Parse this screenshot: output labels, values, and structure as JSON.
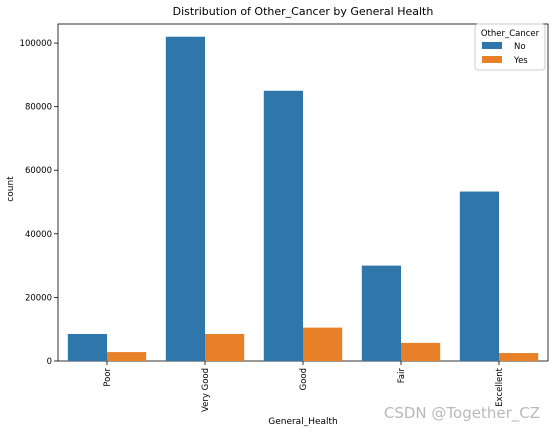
{
  "chart_data": {
    "type": "bar",
    "title": "Distribution of Other_Cancer by General Health",
    "xlabel": "General_Health",
    "ylabel": "count",
    "categories": [
      "Poor",
      "Very Good",
      "Good",
      "Fair",
      "Excellent"
    ],
    "series": [
      {
        "name": "No",
        "color": "#2f76aa",
        "values": [
          8500,
          102000,
          85000,
          30000,
          53300
        ]
      },
      {
        "name": "Yes",
        "color": "#e88027",
        "values": [
          2800,
          8500,
          10500,
          5700,
          2500
        ]
      }
    ],
    "ylim": [
      0,
      106000
    ],
    "yticks": [
      0,
      20000,
      40000,
      60000,
      80000,
      100000
    ],
    "grid": false,
    "legend": {
      "title": "Other_Cancer",
      "placement": "top-right"
    }
  },
  "watermark": "CSDN @Together_CZ"
}
